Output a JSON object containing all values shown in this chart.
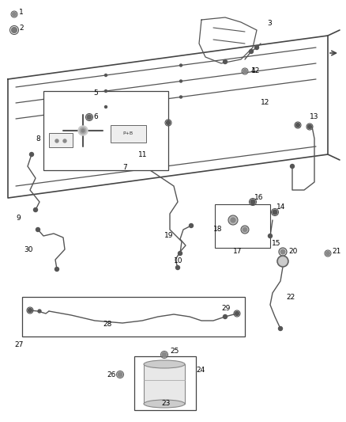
{
  "bg_color": "#ffffff",
  "line_color": "#555555",
  "text_color": "#000000",
  "lc": "#555555",
  "frame_color": "#444444"
}
